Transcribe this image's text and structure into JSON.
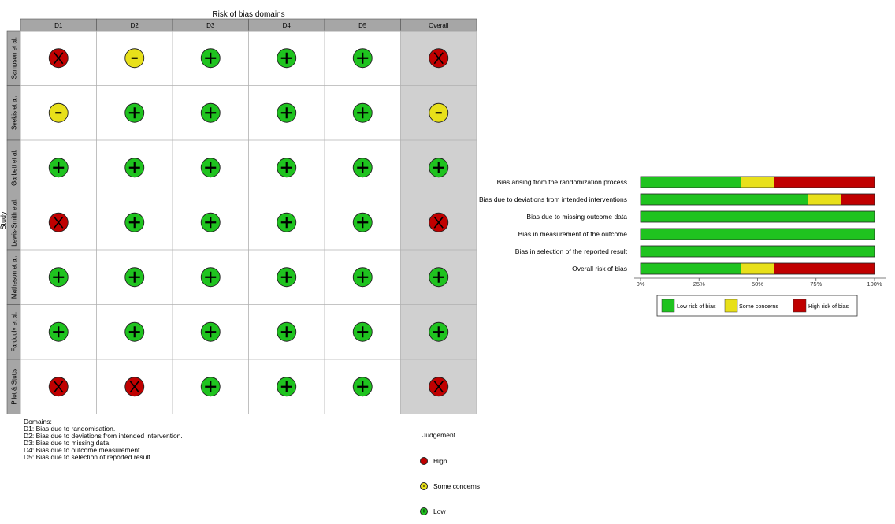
{
  "colors": {
    "low": "#1fc31f",
    "some": "#e8e01a",
    "high": "#c00000",
    "header_bg": "#a6a6a6",
    "overall_bg": "#d0d0d0",
    "grid_line": "#b0b0b0"
  },
  "chart_data": [
    {
      "type": "table",
      "title": "Risk of bias domains",
      "ylabel": "Study",
      "columns": [
        "D1",
        "D2",
        "D3",
        "D4",
        "D5",
        "Overall"
      ],
      "studies": [
        "Sampson et al.",
        "Seekis et al.",
        "Garbett et al.",
        "Lewis-Smith etal.",
        "Matheson et al.",
        "Fardouly et al.",
        "Pilot & Stutts"
      ],
      "judgements": [
        [
          "high",
          "some",
          "low",
          "low",
          "low",
          "high"
        ],
        [
          "some",
          "low",
          "low",
          "low",
          "low",
          "some"
        ],
        [
          "low",
          "low",
          "low",
          "low",
          "low",
          "low"
        ],
        [
          "high",
          "low",
          "low",
          "low",
          "low",
          "high"
        ],
        [
          "low",
          "low",
          "low",
          "low",
          "low",
          "low"
        ],
        [
          "low",
          "low",
          "low",
          "low",
          "low",
          "low"
        ],
        [
          "high",
          "high",
          "low",
          "low",
          "low",
          "high"
        ]
      ],
      "symbols": {
        "high": "X",
        "some": "-",
        "low": "+"
      }
    },
    {
      "type": "bar",
      "stacked": true,
      "orientation": "horizontal",
      "categories": [
        "Bias arising from the randomization process",
        "Bias due to deviations from intended interventions",
        "Bias due to missing outcome data",
        "Bias in measurement of the outcome",
        "Bias in selection of the reported result",
        "Overall risk of bias"
      ],
      "series": [
        {
          "name": "Low risk of bias",
          "key": "low",
          "values": [
            42.9,
            71.4,
            100,
            100,
            100,
            42.9
          ]
        },
        {
          "name": "Some concerns",
          "key": "some",
          "values": [
            14.3,
            14.3,
            0,
            0,
            0,
            14.3
          ]
        },
        {
          "name": "High risk of bias",
          "key": "high",
          "values": [
            42.9,
            14.3,
            0,
            0,
            0,
            42.9
          ]
        }
      ],
      "xlim": [
        0,
        100
      ],
      "xticks": [
        "0%",
        "25%",
        "50%",
        "75%",
        "100%"
      ],
      "legend_position": "bottom"
    }
  ],
  "domains_legend": {
    "title": "Domains:",
    "lines": [
      "D1: Bias due to randomisation.",
      "D2: Bias due to deviations from intended intervention.",
      "D3: Bias due to missing data.",
      "D4: Bias due to outcome measurement.",
      "D5: Bias due to selection of reported result."
    ]
  },
  "judgement_legend": {
    "title": "Judgement",
    "items": [
      {
        "key": "high",
        "label": "High"
      },
      {
        "key": "some",
        "label": "Some concerns"
      },
      {
        "key": "low",
        "label": "Low"
      }
    ]
  }
}
